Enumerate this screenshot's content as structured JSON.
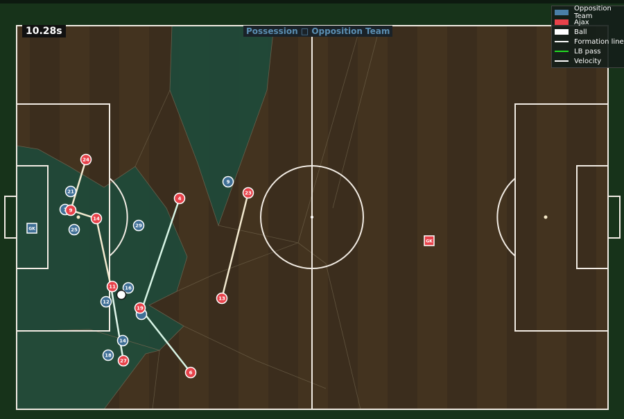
{
  "timer": "10.28s",
  "possession": "Possession □ Opposition Team",
  "legend": {
    "items": [
      {
        "label": "Opposition Team",
        "kind": "swatch",
        "color": "#4a7fa8"
      },
      {
        "label": "Ajax",
        "kind": "swatch",
        "color": "#e8424a"
      },
      {
        "label": "Ball",
        "kind": "swatch",
        "color": "#ffffff"
      },
      {
        "label": "Formation line",
        "kind": "line",
        "color": "#ffffff"
      },
      {
        "label": "LB pass",
        "kind": "arrow",
        "color": "#22dd22"
      },
      {
        "label": "Velocity",
        "kind": "arrow",
        "color": "#ffffff"
      }
    ]
  },
  "colors": {
    "opposition": "#3f6f96",
    "ajax": "#e8424a",
    "pitch": "#3e3022",
    "control": "#1f4a3a"
  },
  "ajax_players": [
    {
      "n": "24"
    },
    {
      "n": "9"
    },
    {
      "n": "14"
    },
    {
      "n": "4"
    },
    {
      "n": "23"
    },
    {
      "n": "11"
    },
    {
      "n": "19"
    },
    {
      "n": "13"
    },
    {
      "n": "27"
    },
    {
      "n": "6"
    },
    {
      "n": "GK"
    }
  ],
  "opposition_players": [
    {
      "n": "21"
    },
    {
      "n": "1"
    },
    {
      "n": "25"
    },
    {
      "n": "29"
    },
    {
      "n": "9"
    },
    {
      "n": "16"
    },
    {
      "n": "12"
    },
    {
      "n": ""
    },
    {
      "n": "14"
    },
    {
      "n": "18"
    },
    {
      "n": "GK"
    }
  ]
}
